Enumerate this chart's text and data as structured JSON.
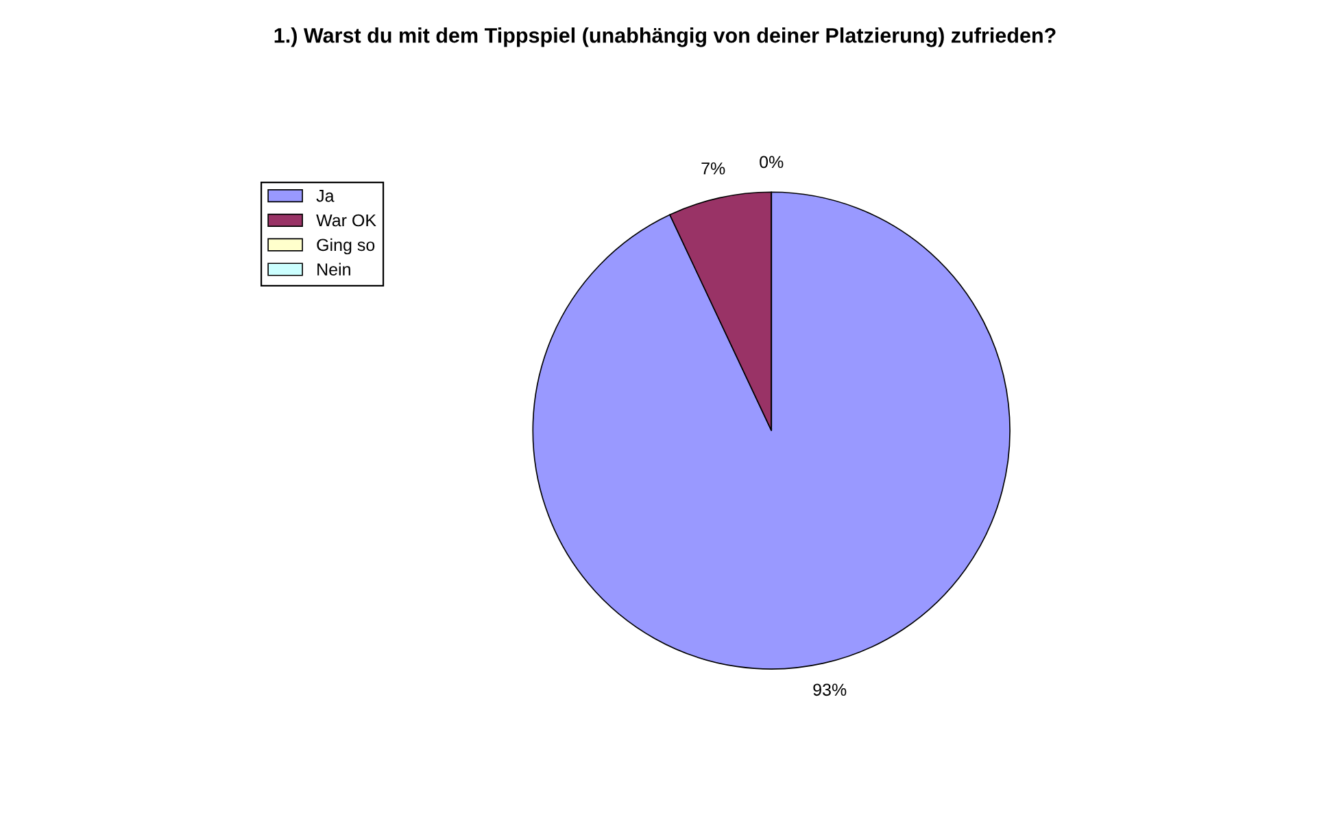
{
  "chart_data": {
    "type": "pie",
    "title": "1.) Warst du mit dem Tippspiel (unabhängig von deiner Platzierung) zufrieden?",
    "categories": [
      "Ja",
      "War OK",
      "Ging so",
      "Nein"
    ],
    "values": [
      93,
      7,
      0,
      0
    ],
    "colors": [
      "#9999ff",
      "#993366",
      "#ffffcc",
      "#ccffff"
    ],
    "value_labels": [
      "93%",
      "7%",
      "0%",
      null
    ],
    "legend": "top left"
  }
}
